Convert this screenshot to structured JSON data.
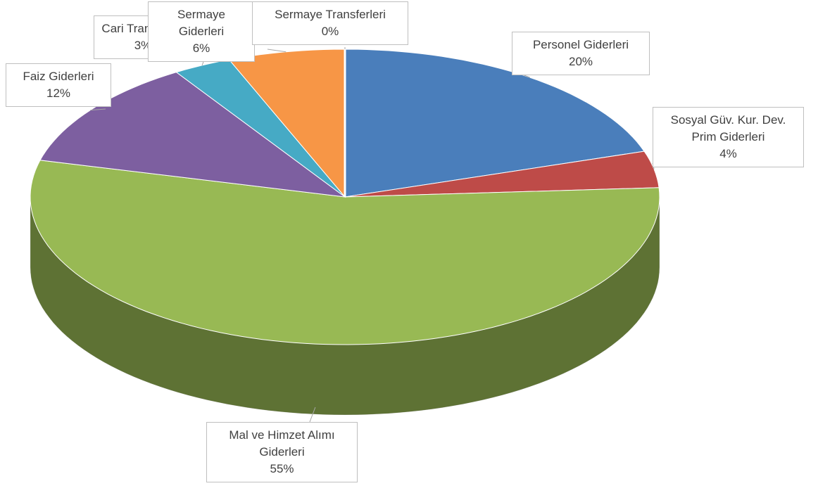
{
  "chart_data": {
    "type": "pie",
    "categories": [
      "Personel Giderleri",
      "Sosyal Güv. Kur. Dev. Prim Giderleri",
      "Mal ve Himzet Alımı Giderleri",
      "Faiz Giderleri",
      "Cari Transferler",
      "Sermaye Giderleri",
      "Sermaye Transferleri"
    ],
    "values": [
      20,
      4,
      55,
      12,
      3,
      6,
      0
    ],
    "value_labels": [
      "20%",
      "4%",
      "55%",
      "12%",
      "3%",
      "6%",
      "0%"
    ],
    "colors": [
      "#4a7ebb",
      "#be4b48",
      "#98b954",
      "#7d5fa0",
      "#46aac5",
      "#f79646",
      "#1f3864"
    ]
  }
}
